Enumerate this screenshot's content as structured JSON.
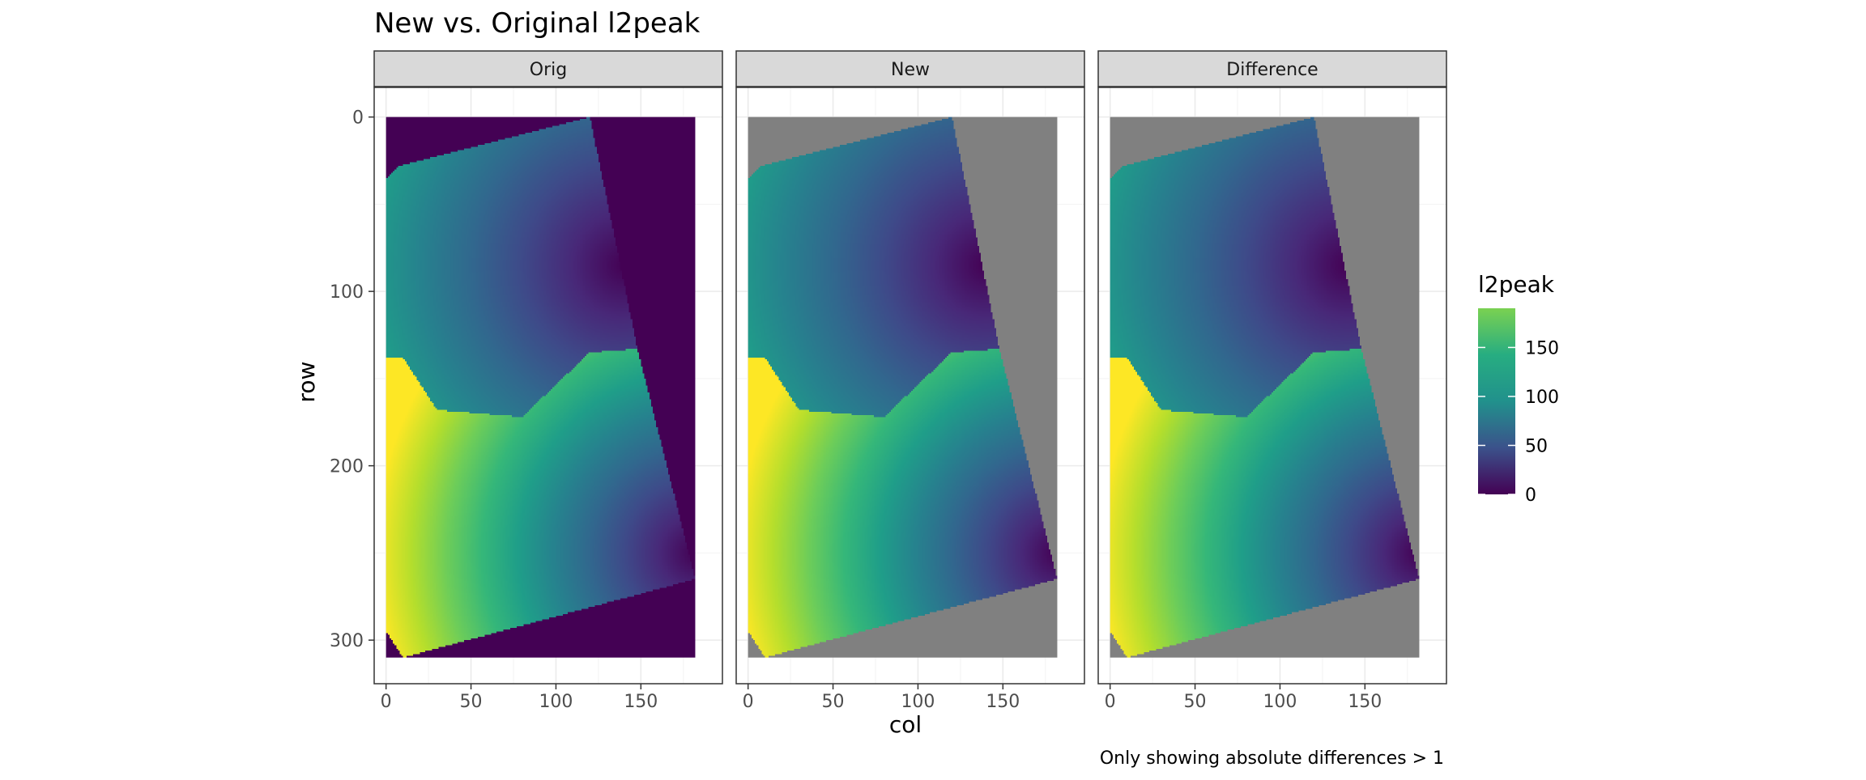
{
  "chart_data": {
    "type": "heatmap",
    "title": "New vs. Original l2peak",
    "xlabel": "col",
    "ylabel": "row",
    "caption": "Only showing absolute differences > 1",
    "facets": [
      "Orig",
      "New",
      "Difference"
    ],
    "x_ticks": [
      "0",
      "50",
      "100",
      "150"
    ],
    "y_ticks": [
      "0",
      "100",
      "200",
      "300"
    ],
    "xlim": [
      -7,
      198
    ],
    "ylim": [
      -17,
      325
    ],
    "y_reversed": true,
    "grid": true,
    "color_scale": "viridis",
    "na_color": "#808080",
    "legend": {
      "title": "l2peak",
      "position": "right",
      "range": [
        0,
        190
      ],
      "ticks": [
        "0",
        "50",
        "100",
        "150"
      ]
    },
    "raster": {
      "n_cols": 182,
      "n_rows": 310,
      "frame_corners_col_row": [
        [
          0,
          35
        ],
        [
          8,
          28
        ],
        [
          120,
          0
        ],
        [
          148,
          133
        ],
        [
          182,
          265
        ],
        [
          10,
          310
        ],
        [
          0,
          295
        ]
      ],
      "region_divide_col_row": [
        [
          10,
          138
        ],
        [
          30,
          168
        ],
        [
          80,
          172
        ],
        [
          120,
          135
        ],
        [
          148,
          133
        ]
      ],
      "upper_peak_col_row": [
        140,
        85
      ],
      "lower_peak_col_row": [
        182,
        250
      ],
      "max_value_col_row": [
        2,
        305
      ],
      "value_range": [
        0,
        190
      ]
    }
  }
}
